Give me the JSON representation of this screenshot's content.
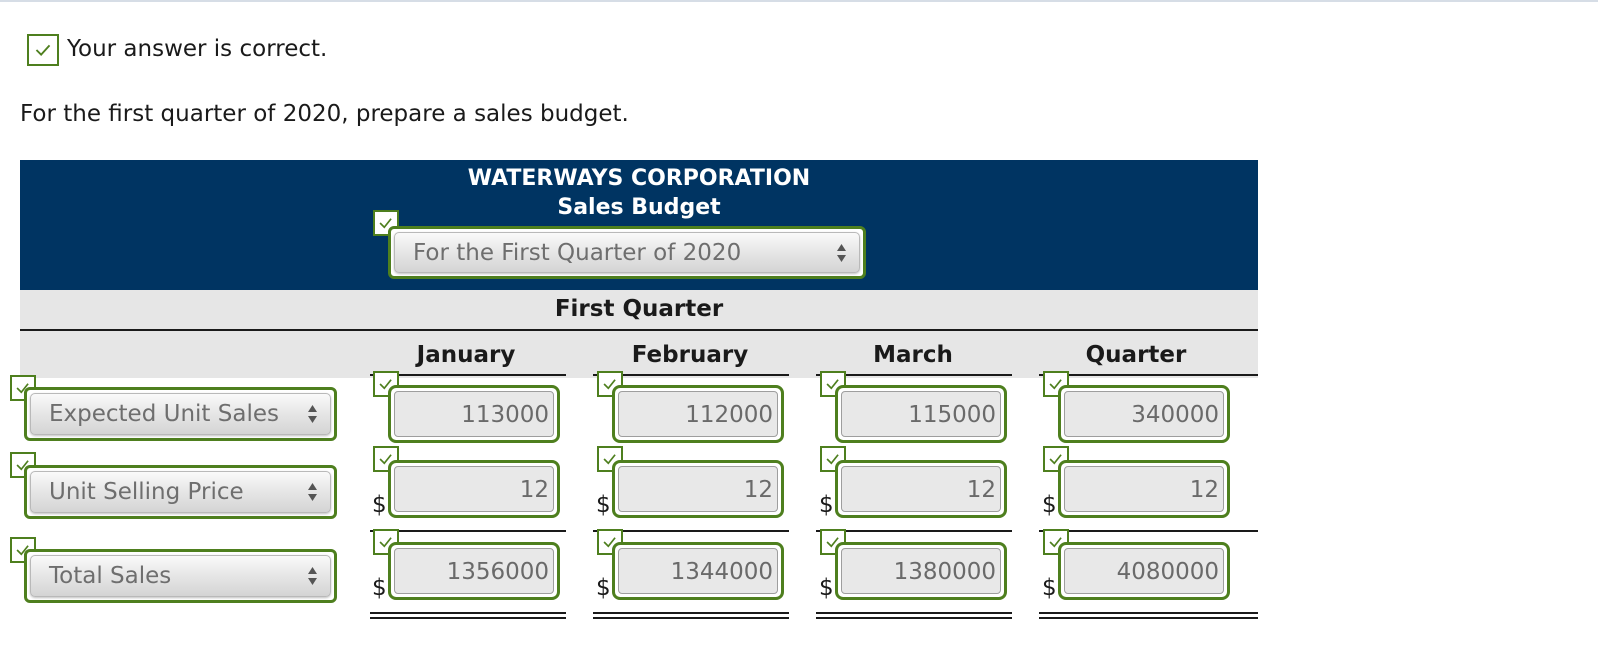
{
  "feedback": {
    "message": "Your answer is correct."
  },
  "instruction": "For the first quarter of 2020, prepare a sales budget.",
  "header": {
    "company": "WATERWAYS CORPORATION",
    "title": "Sales Budget",
    "period_selected": "For the First Quarter of 2020"
  },
  "group_header": "First Quarter",
  "columns": [
    "January",
    "February",
    "March",
    "Quarter"
  ],
  "rows": [
    {
      "label": "Expected Unit Sales",
      "currency": "",
      "values": [
        "113000",
        "112000",
        "115000",
        "340000"
      ]
    },
    {
      "label": "Unit Selling Price",
      "currency": "$",
      "values": [
        "12",
        "12",
        "12",
        "12"
      ]
    },
    {
      "label": "Total Sales",
      "currency": "$",
      "values": [
        "1356000",
        "1344000",
        "1380000",
        "4080000"
      ]
    }
  ],
  "icons": {
    "check": "checkmark-icon",
    "select_arrows": "updown-arrows-icon"
  },
  "colors": {
    "header_bg": "#003462",
    "correct_border": "#4e7f1e",
    "band_bg": "#e6e6e6"
  }
}
